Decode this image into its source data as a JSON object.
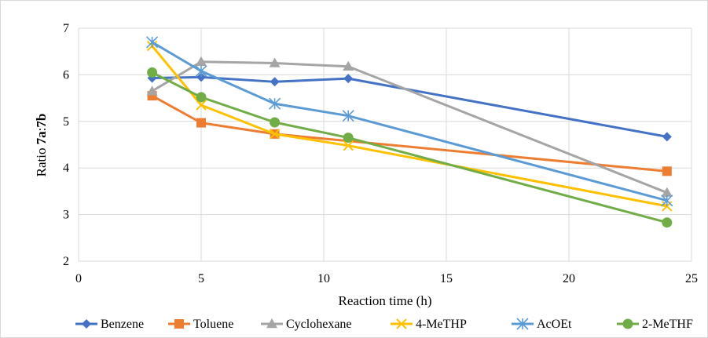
{
  "chart_data": {
    "type": "line",
    "title": "",
    "xlabel": "Reaction time (h)",
    "ylabel_prefix": "Ratio ",
    "ylabel_a": "7a",
    "ylabel_sep": ":",
    "ylabel_b": "7b",
    "xlim": [
      0,
      25
    ],
    "ylim": [
      2,
      7
    ],
    "xticks": [
      0,
      5,
      10,
      15,
      20,
      25
    ],
    "yticks": [
      2,
      3,
      4,
      5,
      6,
      7
    ],
    "grid": true,
    "legend_position": "bottom",
    "x": [
      3,
      5,
      8,
      11,
      24
    ],
    "series": [
      {
        "name": "Benzene",
        "color": "#4472C4",
        "marker": "diamond",
        "values": [
          5.93,
          5.95,
          5.85,
          5.92,
          4.67
        ]
      },
      {
        "name": "Toluene",
        "color": "#ED7D31",
        "marker": "square",
        "values": [
          5.55,
          4.97,
          4.73,
          null,
          3.93
        ]
      },
      {
        "name": "Cyclohexane",
        "color": "#A5A5A5",
        "marker": "triangle",
        "values": [
          5.65,
          6.28,
          6.25,
          6.18,
          3.47
        ]
      },
      {
        "name": "4-MeTHP",
        "color": "#FFC000",
        "marker": "x",
        "values": [
          6.62,
          5.35,
          4.73,
          4.48,
          3.18
        ]
      },
      {
        "name": "AcOEt",
        "color": "#5B9BD5",
        "marker": "star",
        "values": [
          6.7,
          6.08,
          5.38,
          5.12,
          3.3
        ]
      },
      {
        "name": "2-MeTHF",
        "color": "#70AD47",
        "marker": "circle",
        "values": [
          6.05,
          5.52,
          4.98,
          4.65,
          2.83
        ]
      }
    ]
  }
}
